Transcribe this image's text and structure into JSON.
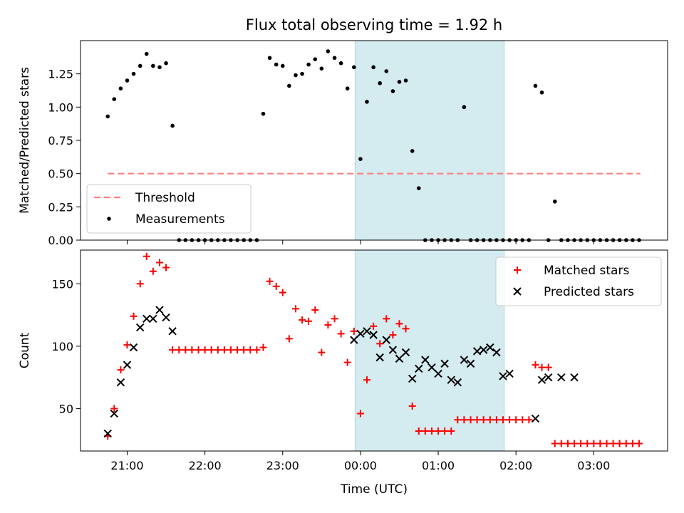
{
  "chart_data": {
    "type": "scatter",
    "title": "Flux total observing time = 1.92 h",
    "xlabel": "Time (UTC)",
    "x_ticks": [
      "21:00",
      "22:00",
      "23:00",
      "00:00",
      "01:00",
      "02:00",
      "03:00"
    ],
    "colors": {
      "threshold": "#ff8080",
      "measurements": "#000000",
      "matched": "#ff0000",
      "predicted": "#000000",
      "band": "#d4ebf0"
    },
    "observing_window_hours": [
      23.93,
      25.85
    ],
    "top_panel": {
      "ylabel": "Matched/Predicted stars",
      "ylim": [
        0,
        1.5
      ],
      "y_ticks": [
        "0.00",
        "0.25",
        "0.50",
        "0.75",
        "1.00",
        "1.25"
      ],
      "legend": [
        "Threshold",
        "Measurements"
      ],
      "legend_position": "lower-left",
      "threshold": {
        "value": 0.5,
        "x_range": [
          20.75,
          27.6
        ]
      },
      "measurements": {
        "x": [
          20.75,
          20.833,
          20.917,
          21.0,
          21.083,
          21.167,
          21.25,
          21.333,
          21.417,
          21.5,
          21.583,
          21.667,
          21.75,
          21.833,
          21.917,
          22.0,
          22.083,
          22.167,
          22.25,
          22.333,
          22.417,
          22.5,
          22.583,
          22.667,
          22.75,
          22.833,
          22.917,
          23.0,
          23.083,
          23.167,
          23.25,
          23.333,
          23.417,
          23.5,
          23.583,
          23.667,
          23.75,
          23.833,
          23.917,
          24.0,
          24.083,
          24.167,
          24.25,
          24.333,
          24.417,
          24.5,
          24.583,
          24.667,
          24.75,
          24.833,
          24.917,
          25.0,
          25.083,
          25.167,
          25.25,
          25.333,
          25.417,
          25.5,
          25.583,
          25.667,
          25.75,
          25.833,
          25.917,
          26.0,
          26.083,
          26.167,
          26.25,
          26.333,
          26.417,
          26.5,
          26.583,
          26.667,
          26.75,
          26.833,
          26.917,
          27.0,
          27.083,
          27.167,
          27.25,
          27.333,
          27.417,
          27.5,
          27.583
        ],
        "y": [
          0.93,
          1.06,
          1.14,
          1.2,
          1.25,
          1.31,
          1.4,
          1.31,
          1.3,
          1.33,
          0.86,
          0,
          0,
          0,
          0,
          0,
          0,
          0,
          0,
          0,
          0,
          0,
          0,
          0,
          0.95,
          1.37,
          1.32,
          1.31,
          1.16,
          1.24,
          1.25,
          1.32,
          1.36,
          1.29,
          1.42,
          1.37,
          1.33,
          1.14,
          1.3,
          0.61,
          1.04,
          1.3,
          1.18,
          1.27,
          1.12,
          1.19,
          1.2,
          0.67,
          0.39,
          0,
          0,
          0,
          0,
          0,
          0,
          1.0,
          0,
          0,
          0,
          0,
          0,
          0,
          0,
          0,
          0,
          0,
          1.16,
          1.11,
          0,
          0.29,
          0,
          0,
          0,
          0,
          0,
          0,
          0,
          0,
          0,
          0,
          0,
          0,
          0
        ]
      }
    },
    "bottom_panel": {
      "ylabel": "Count",
      "ylim": [
        16,
        177
      ],
      "y_ticks": [
        "50",
        "100",
        "150"
      ],
      "legend": [
        "Matched stars",
        "Predicted stars"
      ],
      "legend_position": "upper-right",
      "series": [
        {
          "name": "Matched stars",
          "marker": "plus",
          "x": [
            20.75,
            20.833,
            20.917,
            21.0,
            21.083,
            21.167,
            21.25,
            21.333,
            21.417,
            21.5,
            21.583,
            21.667,
            21.75,
            21.833,
            21.917,
            22.0,
            22.083,
            22.167,
            22.25,
            22.333,
            22.417,
            22.5,
            22.583,
            22.667,
            22.75,
            22.833,
            22.917,
            23.0,
            23.083,
            23.167,
            23.25,
            23.333,
            23.417,
            23.5,
            23.583,
            23.667,
            23.75,
            23.833,
            23.917,
            24.0,
            24.083,
            24.167,
            24.25,
            24.333,
            24.417,
            24.5,
            24.583,
            24.667,
            24.75,
            24.833,
            24.917,
            25.0,
            25.083,
            25.167,
            25.25,
            25.333,
            25.417,
            25.5,
            25.583,
            25.667,
            25.75,
            25.833,
            25.917,
            26.0,
            26.083,
            26.167,
            26.25,
            26.333,
            26.417,
            26.5,
            26.583,
            26.667,
            26.75,
            26.833,
            26.917,
            27.0,
            27.083,
            27.167,
            27.25,
            27.333,
            27.417,
            27.5,
            27.583
          ],
          "y": [
            28,
            50,
            81,
            101,
            124,
            150,
            172,
            160,
            167,
            163,
            97,
            97,
            97,
            97,
            97,
            97,
            97,
            97,
            97,
            97,
            97,
            97,
            97,
            97,
            99,
            152,
            148,
            143,
            106,
            130,
            121,
            120,
            129,
            95,
            117,
            122,
            110,
            87,
            112,
            46,
            73,
            116,
            102,
            122,
            109,
            118,
            114,
            52,
            32,
            32,
            32,
            32,
            32,
            32,
            41,
            41,
            41,
            41,
            41,
            41,
            41,
            41,
            41,
            41,
            41,
            41,
            85,
            83,
            83,
            22,
            22,
            22,
            22,
            22,
            22,
            22,
            22,
            22,
            22,
            22,
            22,
            22,
            22
          ]
        },
        {
          "name": "Predicted stars",
          "marker": "x",
          "x": [
            20.75,
            20.833,
            20.917,
            21.0,
            21.083,
            21.167,
            21.25,
            21.333,
            21.417,
            21.5,
            21.583,
            23.917,
            24.0,
            24.083,
            24.167,
            24.25,
            24.333,
            24.417,
            24.5,
            24.583,
            24.667,
            24.75,
            24.833,
            24.917,
            25.0,
            25.083,
            25.167,
            25.25,
            25.333,
            25.417,
            25.5,
            25.583,
            25.667,
            25.75,
            25.833,
            25.917,
            26.25,
            26.333,
            26.417,
            26.583,
            26.75
          ],
          "y": [
            30,
            46,
            71,
            85,
            99,
            115,
            122,
            122,
            129,
            123,
            112,
            105,
            110,
            112,
            109,
            91,
            105,
            97,
            90,
            95,
            74,
            82,
            89,
            83,
            78,
            86,
            73,
            71,
            89,
            86,
            96,
            97,
            99,
            95,
            76,
            78,
            42,
            73,
            75,
            75,
            75
          ]
        }
      ]
    }
  }
}
